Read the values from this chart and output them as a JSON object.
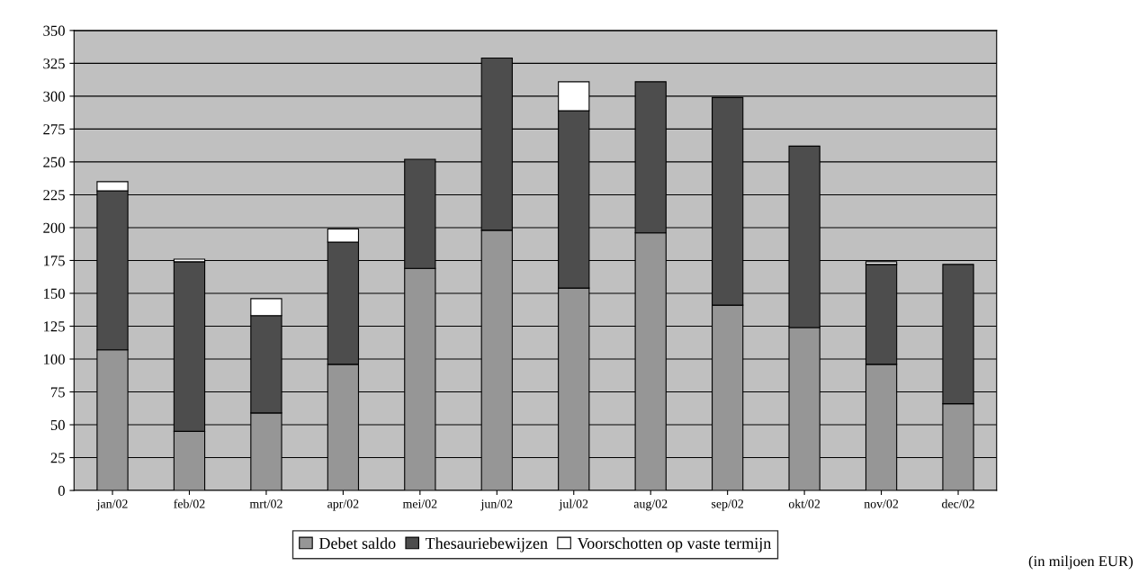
{
  "chart_data": {
    "type": "bar",
    "stacked": true,
    "categories": [
      "jan/02",
      "feb/02",
      "mrt/02",
      "apr/02",
      "mei/02",
      "jun/02",
      "jul/02",
      "aug/02",
      "sep/02",
      "okt/02",
      "nov/02",
      "dec/02"
    ],
    "series": [
      {
        "name": "Debet saldo",
        "color": "#969696",
        "values": [
          107,
          45,
          59,
          96,
          169,
          198,
          154,
          196,
          141,
          124,
          96,
          66
        ]
      },
      {
        "name": "Thesauriebewijzen",
        "color": "#4d4d4d",
        "values": [
          121,
          129,
          74,
          93,
          83,
          131,
          135,
          115,
          158,
          138,
          76,
          106
        ]
      },
      {
        "name": "Voorschotten op vaste termijn",
        "color": "#ffffff",
        "values": [
          7,
          2,
          13,
          10,
          null,
          null,
          22,
          null,
          null,
          null,
          2,
          null
        ]
      }
    ],
    "ylim": [
      0,
      350
    ],
    "yticks": [
      0,
      25,
      50,
      75,
      100,
      125,
      150,
      175,
      200,
      225,
      250,
      275,
      300,
      325,
      350
    ],
    "grid": "y",
    "legend": "bottom",
    "annotations": [
      "(in miljoen EUR)"
    ]
  }
}
